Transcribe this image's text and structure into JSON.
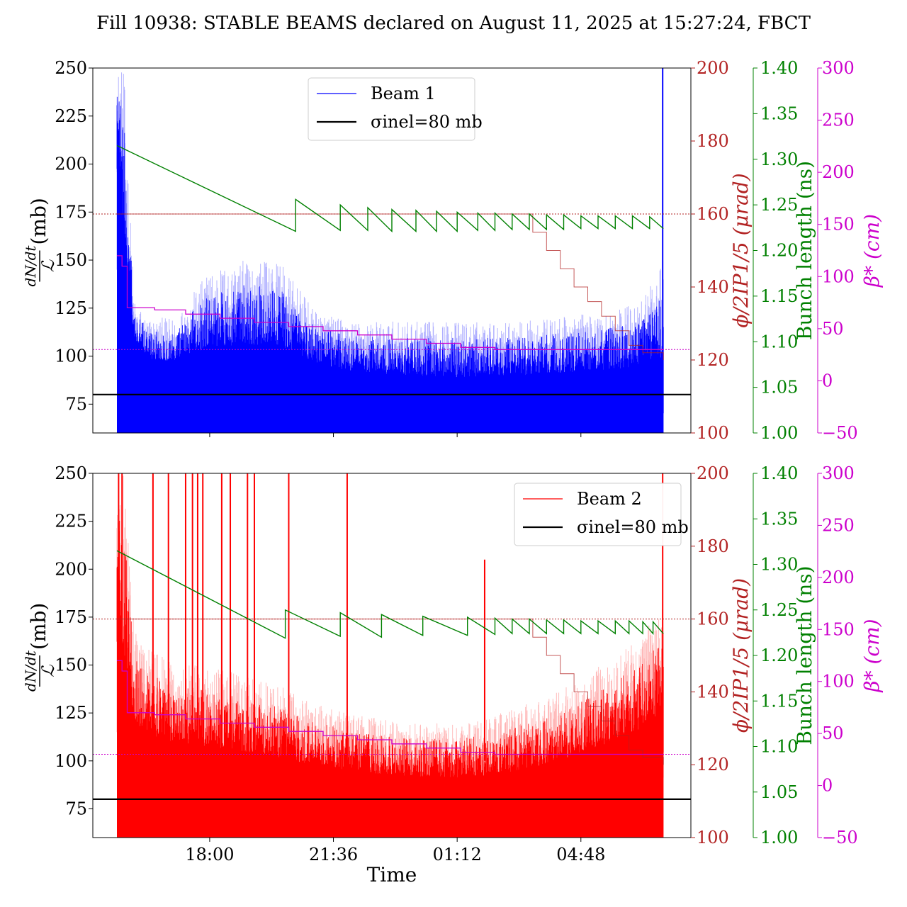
{
  "title": "Fill 10938: STABLE BEAMS declared on August 11, 2025 at 15:27:24, FBCT",
  "colors": {
    "beam1": "#0000ff",
    "beam1_light": "#a0a0ff",
    "beam2": "#ff0000",
    "beam2_light": "#ffa8a8",
    "crossing": "#b22222",
    "bunch": "#008000",
    "beta": "#cc00cc",
    "reference": "#000000"
  },
  "chart_data": [
    {
      "type": "line",
      "panel": "top",
      "xlabel": "",
      "x_ticks": [
        "18:00",
        "21:36",
        "01:12",
        "04:48"
      ],
      "x_tick_hours": [
        18.0,
        21.6,
        25.2,
        28.8
      ],
      "xlim_hours": [
        14.6,
        32.0
      ],
      "y_left": {
        "label_num": "dN/dt",
        "label_den": "ℒ",
        "label_unit": "(mb)",
        "lim": [
          60,
          250
        ],
        "ticks": [
          75,
          100,
          125,
          150,
          175,
          200,
          225,
          250
        ]
      },
      "y_crossing": {
        "label": "ϕ/2IP1/5 (μrad)",
        "lim": [
          100,
          200
        ],
        "ticks": [
          100,
          120,
          140,
          160,
          180,
          200
        ]
      },
      "y_bunch": {
        "label": "Bunch length (ns)",
        "lim": [
          1.0,
          1.4
        ],
        "ticks": [
          "1.00",
          "1.05",
          "1.10",
          "1.15",
          "1.20",
          "1.25",
          "1.30",
          "1.35",
          "1.40"
        ]
      },
      "y_beta": {
        "label": "β* (cm)",
        "lim": [
          -50,
          300
        ],
        "ticks": [
          "−50",
          "0",
          "50",
          "100",
          "150",
          "200",
          "250",
          "300"
        ]
      },
      "legend": {
        "position": "upper-center",
        "entries": [
          "Beam 1",
          "σinel=80 mb"
        ]
      },
      "reference_line": {
        "name": "σinel=80 mb",
        "value": 80
      },
      "crossing_ref_value": 160,
      "beta_ref_value": 30,
      "loss_xsection": {
        "name": "Beam 1",
        "base_hours": [
          15.3,
          15.5,
          15.8,
          16.2,
          17.0,
          18.0,
          19.0,
          20.0,
          21.0,
          22.0,
          23.0,
          24.0,
          25.0,
          26.0,
          27.0,
          28.0,
          29.0,
          30.0,
          30.5,
          31.0,
          31.2
        ],
        "base_values": [
          220,
          150,
          105,
          95,
          93,
          98,
          98,
          98,
          92,
          88,
          86,
          85,
          84,
          84,
          85,
          86,
          87,
          88,
          89,
          90,
          91
        ],
        "band_upper": [
          250,
          250,
          130,
          120,
          120,
          145,
          150,
          150,
          125,
          118,
          118,
          118,
          118,
          118,
          118,
          120,
          122,
          125,
          130,
          140,
          150
        ],
        "band_lower": [
          150,
          80,
          60,
          60,
          60,
          60,
          60,
          60,
          60,
          60,
          60,
          60,
          60,
          60,
          60,
          60,
          60,
          60,
          60,
          60,
          60
        ]
      },
      "crossing_angle": {
        "hours": [
          15.3,
          27.0,
          27.4,
          27.8,
          28.2,
          28.6,
          29.0,
          29.4,
          29.8,
          30.2,
          30.6,
          31.2
        ],
        "values": [
          160,
          160,
          155,
          150,
          145,
          140,
          136,
          132,
          128,
          124,
          122,
          120
        ]
      },
      "beta_star": {
        "hours": [
          15.3,
          15.45,
          15.6,
          16.4,
          17.3,
          18.3,
          19.3,
          20.3,
          21.3,
          22.3,
          23.3,
          24.3,
          25.3,
          26.3,
          27.3,
          31.2
        ],
        "values": [
          120,
          110,
          70,
          68,
          64,
          60,
          56,
          52,
          48,
          44,
          40,
          36,
          32,
          30,
          30,
          30
        ]
      },
      "bunch_length": {
        "fill_hours": [
          15.3,
          20.5,
          21.8,
          22.6,
          23.3,
          24.0,
          24.6,
          25.2,
          25.8,
          26.3,
          26.8,
          27.3,
          27.8,
          28.3,
          28.8,
          29.3,
          29.8,
          30.3,
          30.8,
          31.2
        ],
        "peaks": [
          1.315,
          1.256,
          1.25,
          1.247,
          1.245,
          1.244,
          1.243,
          1.242,
          1.241,
          1.241,
          1.24,
          1.24,
          1.239,
          1.239,
          1.238,
          1.238,
          1.238,
          1.238,
          1.237
        ],
        "troughs": [
          1.221,
          1.222,
          1.222,
          1.221,
          1.221,
          1.221,
          1.221,
          1.222,
          1.222,
          1.223,
          1.223,
          1.223,
          1.223,
          1.224,
          1.224,
          1.224,
          1.224,
          1.224,
          1.224
        ]
      }
    },
    {
      "type": "line",
      "panel": "bottom",
      "xlabel": "Time",
      "x_ticks": [
        "18:00",
        "21:36",
        "01:12",
        "04:48"
      ],
      "x_tick_hours": [
        18.0,
        21.6,
        25.2,
        28.8
      ],
      "xlim_hours": [
        14.6,
        32.0
      ],
      "y_left": {
        "label_num": "dN/dt",
        "label_den": "ℒ",
        "label_unit": "(mb)",
        "lim": [
          60,
          250
        ],
        "ticks": [
          75,
          100,
          125,
          150,
          175,
          200,
          225,
          250
        ]
      },
      "y_crossing": {
        "label": "ϕ/2IP1/5 (μrad)",
        "lim": [
          100,
          200
        ],
        "ticks": [
          100,
          120,
          140,
          160,
          180,
          200
        ]
      },
      "y_bunch": {
        "label": "Bunch length (ns)",
        "lim": [
          1.0,
          1.4
        ],
        "ticks": [
          "1.00",
          "1.05",
          "1.10",
          "1.15",
          "1.20",
          "1.25",
          "1.30",
          "1.35",
          "1.40"
        ]
      },
      "y_beta": {
        "label": "β* (cm)",
        "lim": [
          -50,
          300
        ],
        "ticks": [
          "−50",
          "0",
          "50",
          "100",
          "150",
          "200",
          "250",
          "300"
        ]
      },
      "legend": {
        "position": "upper-right",
        "entries": [
          "Beam 2",
          "σinel=80 mb"
        ]
      },
      "reference_line": {
        "name": "σinel=80 mb",
        "value": 80
      },
      "crossing_ref_value": 160,
      "beta_ref_value": 30,
      "loss_xsection": {
        "name": "Beam 2",
        "base_hours": [
          15.3,
          15.5,
          15.8,
          16.2,
          17.0,
          18.0,
          19.0,
          20.0,
          21.0,
          22.0,
          23.0,
          24.0,
          25.0,
          26.0,
          27.0,
          28.0,
          29.0,
          30.0,
          30.5,
          31.0,
          31.2
        ],
        "base_values": [
          190,
          140,
          110,
          105,
          102,
          100,
          98,
          95,
          92,
          90,
          88,
          87,
          86,
          87,
          89,
          93,
          98,
          104,
          108,
          112,
          115
        ],
        "band_upper": [
          250,
          250,
          170,
          160,
          150,
          150,
          145,
          140,
          130,
          125,
          122,
          120,
          120,
          122,
          128,
          135,
          145,
          158,
          165,
          175,
          180
        ],
        "band_lower": [
          120,
          70,
          60,
          60,
          60,
          60,
          60,
          60,
          60,
          60,
          60,
          60,
          60,
          60,
          60,
          60,
          60,
          60,
          60,
          62,
          65
        ],
        "spike_hours": [
          15.35,
          15.45,
          16.35,
          16.8,
          17.3,
          17.5,
          17.65,
          17.8,
          18.35,
          18.6,
          19.1,
          19.3,
          20.3,
          22.0,
          26.0
        ],
        "spike_values": [
          250,
          250,
          250,
          250,
          250,
          250,
          250,
          250,
          250,
          250,
          250,
          250,
          250,
          250,
          205
        ]
      },
      "crossing_angle": {
        "hours": [
          15.3,
          27.0,
          27.4,
          27.8,
          28.2,
          28.6,
          29.0,
          29.4,
          29.8,
          30.2,
          30.6,
          31.2
        ],
        "values": [
          160,
          160,
          155,
          150,
          145,
          140,
          136,
          132,
          128,
          124,
          122,
          120
        ]
      },
      "beta_star": {
        "hours": [
          15.3,
          15.45,
          15.6,
          16.4,
          17.3,
          18.3,
          19.3,
          20.3,
          21.3,
          22.3,
          23.3,
          24.3,
          25.3,
          26.3,
          27.3,
          31.2
        ],
        "values": [
          120,
          110,
          70,
          68,
          64,
          60,
          56,
          52,
          48,
          44,
          40,
          36,
          32,
          30,
          30,
          30
        ]
      },
      "bunch_length": {
        "fill_hours": [
          15.3,
          20.2,
          21.8,
          23.0,
          24.2,
          25.5,
          26.3,
          26.8,
          27.3,
          27.8,
          28.3,
          28.8,
          29.3,
          29.8,
          30.2,
          30.6,
          30.9,
          31.2
        ],
        "peaks": [
          1.315,
          1.25,
          1.247,
          1.245,
          1.243,
          1.242,
          1.241,
          1.24,
          1.24,
          1.239,
          1.239,
          1.238,
          1.238,
          1.238,
          1.238,
          1.237,
          1.237
        ],
        "troughs": [
          1.219,
          1.221,
          1.22,
          1.222,
          1.222,
          1.223,
          1.224,
          1.224,
          1.224,
          1.224,
          1.224,
          1.224,
          1.224,
          1.224,
          1.224,
          1.224,
          1.224
        ]
      }
    }
  ]
}
